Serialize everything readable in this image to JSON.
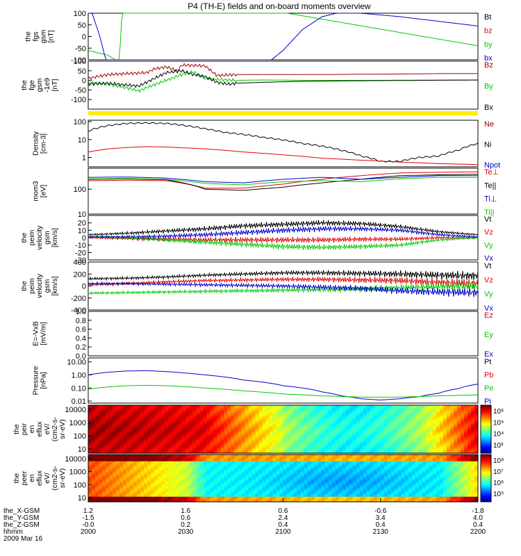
{
  "title": "P4 (TH-E) fields and on-board moments overview",
  "colors": {
    "black": "#000000",
    "red": "#e00000",
    "green": "#00c800",
    "blue": "#0000cc",
    "darkred": "#a00000",
    "yellow": "#ffee00"
  },
  "chart_data": [
    {
      "type": "line",
      "id": "fgs",
      "ylabel": [
        "the",
        "fgs",
        "gsm",
        "[nT]"
      ],
      "ylim": [
        -100,
        100
      ],
      "yticks": [
        "100",
        "50",
        "0",
        "-50",
        "-100"
      ],
      "legend": [
        "Bt",
        "bz",
        "by",
        "bx"
      ],
      "series": [
        {
          "name": "Bt",
          "x": [],
          "y": []
        },
        {
          "name": "bz",
          "x": [],
          "y": []
        },
        {
          "name": "by",
          "x": [
            0.0,
            0.05,
            0.07,
            0.08,
            0.09,
            0.092,
            1.0
          ],
          "y": [
            -60,
            -80,
            -100,
            -100,
            200,
            220,
            -40
          ]
        },
        {
          "name": "bx",
          "x": [
            0.0,
            0.01,
            0.03,
            0.045,
            0.47,
            0.5,
            0.55,
            0.6,
            0.65,
            0.7,
            0.8,
            0.9,
            1.0
          ],
          "y": [
            120,
            100,
            0,
            -100,
            -100,
            -60,
            30,
            85,
            105,
            100,
            85,
            65,
            45
          ]
        }
      ]
    },
    {
      "type": "line",
      "id": "fge",
      "ylabel": [
        "the",
        "fge",
        "gsm",
        "-1e9",
        "[nT]"
      ],
      "ylim": [
        -150,
        100
      ],
      "yticks": [
        "100",
        "50",
        "0",
        "-50",
        "-100"
      ],
      "legend": [
        "Bz",
        "By",
        "Bx"
      ],
      "series": [
        {
          "name": "Bz",
          "x": [
            0.0,
            0.05,
            0.1,
            0.15,
            0.17,
            0.2,
            0.23,
            0.24,
            0.3,
            0.33,
            0.38,
            0.5,
            0.6,
            0.7,
            0.8,
            0.9,
            1.0
          ],
          "y": [
            10,
            30,
            35,
            40,
            60,
            70,
            50,
            80,
            75,
            25,
            30,
            30,
            30,
            32,
            33,
            35,
            35
          ]
        },
        {
          "name": "By",
          "x": [
            0.0,
            0.05,
            0.1,
            0.13,
            0.16,
            0.2,
            0.24,
            0.27,
            0.3,
            0.33,
            0.38,
            0.45,
            0.55,
            0.7,
            0.85,
            1.0
          ],
          "y": [
            -10,
            -20,
            -40,
            -55,
            -30,
            0,
            30,
            45,
            10,
            5,
            0,
            2,
            0,
            0,
            1,
            2
          ]
        },
        {
          "name": "Bx",
          "x": [
            0.0,
            0.05,
            0.1,
            0.13,
            0.16,
            0.2,
            0.24,
            0.27,
            0.3,
            0.33,
            0.36,
            0.38,
            0.45,
            0.55,
            0.7,
            0.85,
            1.0
          ],
          "y": [
            -20,
            -15,
            -25,
            -30,
            0,
            40,
            50,
            30,
            20,
            -10,
            -20,
            -15,
            -10,
            -5,
            -2,
            0,
            2
          ]
        }
      ]
    },
    {
      "type": "line",
      "id": "density",
      "ylog": true,
      "ylabel": [
        "Density",
        "[cm-3]"
      ],
      "ylim": [
        0.3,
        120
      ],
      "yticks": [
        "100",
        "10",
        "1"
      ],
      "ytick_values": [
        100,
        10,
        1
      ],
      "legend": [
        "Ne",
        "Ni",
        "Npot"
      ],
      "series": [
        {
          "name": "Ne",
          "x": [],
          "y": []
        },
        {
          "name": "Ni",
          "x": [
            0.0,
            0.05,
            0.1,
            0.15,
            0.2,
            0.25,
            0.3,
            0.35,
            0.45,
            0.55,
            0.65,
            0.7,
            0.75,
            0.8,
            0.85,
            0.9,
            0.95,
            1.0
          ],
          "y": [
            30,
            60,
            80,
            85,
            80,
            60,
            40,
            25,
            13,
            6,
            2.5,
            1.2,
            0.6,
            0.6,
            1.0,
            1.2,
            2.5,
            6
          ]
        },
        {
          "name": "Npot",
          "x": [],
          "y": []
        },
        {
          "name": "red-line",
          "x": [
            0.0,
            0.05,
            0.1,
            0.15,
            0.2,
            0.3,
            0.4,
            0.5,
            0.6,
            0.7,
            0.8,
            0.9,
            1.0
          ],
          "y": [
            2,
            3,
            3.6,
            4,
            3.8,
            3,
            2,
            1.4,
            0.9,
            0.7,
            0.55,
            0.45,
            0.4
          ]
        }
      ]
    },
    {
      "type": "line",
      "id": "mom3",
      "ylog": true,
      "ylabel": [
        "mom3",
        "[eV]"
      ],
      "ylim": [
        10,
        700
      ],
      "yticks": [
        "100",
        "10"
      ],
      "ytick_values": [
        100,
        10
      ],
      "legend": [
        "Te⊥",
        "Te||",
        "Ti⊥",
        "Ti||"
      ],
      "series": [
        {
          "name": "Te⊥",
          "x": [
            0.0,
            0.1,
            0.2,
            0.3,
            0.4,
            0.5,
            0.6,
            0.7,
            0.8,
            0.9,
            1.0
          ],
          "y": [
            220,
            230,
            220,
            110,
            110,
            160,
            250,
            350,
            450,
            480,
            500
          ]
        },
        {
          "name": "Te||",
          "x": [
            0.0,
            0.1,
            0.2,
            0.3,
            0.4,
            0.5,
            0.6,
            0.7,
            0.8,
            0.9,
            1.0
          ],
          "y": [
            250,
            260,
            240,
            100,
            90,
            120,
            180,
            250,
            350,
            380,
            400
          ]
        },
        {
          "name": "Ti⊥",
          "x": [
            0.0,
            0.1,
            0.2,
            0.3,
            0.4,
            0.5,
            0.6,
            0.7,
            0.8,
            0.9,
            1.0
          ],
          "y": [
            300,
            310,
            280,
            200,
            180,
            250,
            300,
            250,
            300,
            350,
            350
          ]
        },
        {
          "name": "Ti||",
          "x": [
            0.0,
            0.1,
            0.2,
            0.3,
            0.4,
            0.5,
            0.6,
            0.7,
            0.8,
            0.9,
            1.0
          ],
          "y": [
            260,
            270,
            250,
            170,
            150,
            200,
            220,
            200,
            260,
            300,
            300
          ]
        }
      ]
    },
    {
      "type": "line",
      "id": "peim",
      "noisy": true,
      "ylabel": [
        "the",
        "peim",
        "velocity",
        "gsm",
        "[km/s]"
      ],
      "ylim": [
        -30,
        30
      ],
      "yticks": [
        "20",
        "10",
        "0",
        "-10",
        "-20",
        "-30"
      ],
      "legend": [
        "Vt",
        "Vz",
        "Vy",
        "Vx"
      ],
      "series": [
        {
          "name": "Vt",
          "x": [
            0.0,
            0.1,
            0.2,
            0.3,
            0.4,
            0.5,
            0.6,
            0.7,
            0.8,
            0.9,
            1.0
          ],
          "y": [
            4,
            6,
            9,
            12,
            16,
            18,
            20,
            19,
            15,
            8,
            4
          ]
        },
        {
          "name": "Vz",
          "x": [
            0.0,
            0.1,
            0.2,
            0.3,
            0.4,
            0.5,
            0.6,
            0.7,
            0.8,
            0.9,
            1.0
          ],
          "y": [
            0,
            -1,
            -2,
            -3,
            -3,
            -3,
            -3,
            -2,
            -2,
            0,
            0
          ]
        },
        {
          "name": "Vy",
          "x": [
            0.0,
            0.1,
            0.2,
            0.3,
            0.4,
            0.5,
            0.6,
            0.7,
            0.8,
            0.9,
            1.0
          ],
          "y": [
            2,
            0,
            -3,
            -6,
            -9,
            -12,
            -13,
            -12,
            -10,
            -3,
            0
          ]
        },
        {
          "name": "Vx",
          "x": [
            0.0,
            0.1,
            0.2,
            0.3,
            0.4,
            0.5,
            0.6,
            0.7,
            0.8,
            0.9,
            1.0
          ],
          "y": [
            1,
            1,
            2,
            4,
            7,
            10,
            12,
            12,
            10,
            4,
            1
          ]
        }
      ]
    },
    {
      "type": "line",
      "id": "peir",
      "noisy": true,
      "ylabel": [
        "the",
        "peim",
        "velocity",
        "gsm",
        "[km/s]"
      ],
      "ylim": [
        -400,
        400
      ],
      "yticks": [
        "400",
        "200",
        "0",
        "-200",
        "-400"
      ],
      "legend": [
        "Vt",
        "Vz",
        "Vy",
        "Vx"
      ],
      "series": [
        {
          "name": "Vt",
          "x": [
            0.0,
            0.1,
            0.2,
            0.3,
            0.4,
            0.5,
            0.6,
            0.7,
            0.8,
            0.9,
            1.0
          ],
          "y": [
            120,
            130,
            150,
            180,
            200,
            220,
            220,
            210,
            200,
            180,
            170
          ]
        },
        {
          "name": "Vz",
          "x": [
            0.0,
            0.1,
            0.2,
            0.3,
            0.4,
            0.5,
            0.6,
            0.7,
            0.8,
            0.9,
            1.0
          ],
          "y": [
            20,
            40,
            70,
            90,
            100,
            110,
            110,
            100,
            90,
            60,
            40
          ]
        },
        {
          "name": "Vy",
          "x": [
            0.0,
            0.1,
            0.2,
            0.3,
            0.4,
            0.5,
            0.6,
            0.7,
            0.8,
            0.9,
            1.0
          ],
          "y": [
            -120,
            -110,
            -100,
            -90,
            -80,
            -70,
            -60,
            -50,
            -30,
            -10,
            0
          ]
        },
        {
          "name": "Vx",
          "x": [
            0.0,
            0.1,
            0.2,
            0.3,
            0.4,
            0.5,
            0.6,
            0.7,
            0.8,
            0.9,
            1.0
          ],
          "y": [
            40,
            40,
            30,
            20,
            10,
            0,
            -20,
            -40,
            -80,
            -100,
            -110
          ]
        }
      ]
    },
    {
      "type": "line",
      "id": "exb",
      "ylabel": [
        "E=-VxB",
        "[mV/m]"
      ],
      "ylim": [
        0,
        1
      ],
      "yticks": [
        "1.0",
        "0.8",
        "0.6",
        "0.4",
        "0.2",
        "0.0"
      ],
      "legend": [
        "Ez",
        "Ey",
        "Ex"
      ],
      "series": []
    },
    {
      "type": "line",
      "id": "pressure",
      "ylog": true,
      "ylabel": [
        "Pressure",
        "[nPa]"
      ],
      "ylim": [
        0.007,
        20
      ],
      "yticks": [
        "10.00",
        "1.00",
        "0.10",
        "0.01"
      ],
      "ytick_values": [
        10,
        1,
        0.1,
        0.01
      ],
      "legend": [
        "Pt",
        "Pb",
        "Pe",
        "Pi"
      ],
      "series": [
        {
          "name": "Pi",
          "x": [
            0.0,
            0.05,
            0.1,
            0.15,
            0.2,
            0.3,
            0.4,
            0.5,
            0.6,
            0.65,
            0.7,
            0.75,
            0.8,
            0.85,
            0.9,
            0.95,
            1.0
          ],
          "y": [
            1.0,
            1.6,
            2.0,
            2.1,
            1.8,
            1.0,
            0.4,
            0.15,
            0.05,
            0.025,
            0.015,
            0.012,
            0.015,
            0.022,
            0.04,
            0.09,
            0.2
          ]
        },
        {
          "name": "Pe",
          "x": [
            0.0,
            0.05,
            0.1,
            0.15,
            0.2,
            0.3,
            0.4,
            0.5,
            0.6,
            0.7,
            0.8,
            0.9,
            1.0
          ],
          "y": [
            0.08,
            0.12,
            0.15,
            0.16,
            0.15,
            0.1,
            0.06,
            0.035,
            0.025,
            0.02,
            0.02,
            0.025,
            0.03
          ]
        }
      ]
    },
    {
      "type": "heatmap",
      "id": "peir-en",
      "ylabel": [
        "the",
        "peir",
        "en",
        "eflux",
        "eV/",
        "(cm2-s-",
        "sr-eV)"
      ],
      "yticks": [
        "10000",
        "1000",
        "100",
        "10"
      ],
      "colorbar_ticks": [
        "10⁶",
        "10⁵",
        "10⁴",
        "10³"
      ]
    },
    {
      "type": "heatmap",
      "id": "peer-en",
      "ylabel": [
        "the",
        "peer",
        "en",
        "eflux",
        "eV/",
        "(cm2-s-",
        "sr-eV)"
      ],
      "yticks": [
        "10000",
        "1000",
        "100",
        "10"
      ],
      "colorbar_ticks": [
        "10⁸",
        "10⁷",
        "10⁶",
        "10⁵"
      ]
    }
  ],
  "xaxis": {
    "labels": [
      "the_X-GSM",
      "the_Y-GSM",
      "the_Z-GSM",
      "hhmm",
      "2009 Mar 16"
    ],
    "ticks": [
      {
        "rows": [
          "1.2",
          "-1.5",
          "-0.0",
          "2000"
        ]
      },
      {
        "rows": [
          "1.6",
          "0.6",
          "0.2",
          "2030"
        ]
      },
      {
        "rows": [
          "0.6",
          "2.4",
          "0.4",
          "2100"
        ]
      },
      {
        "rows": [
          "-0.6",
          "3.4",
          "0.4",
          "2130"
        ]
      },
      {
        "rows": [
          "-1.8",
          "4.0",
          "0.4",
          "2200"
        ]
      }
    ]
  }
}
